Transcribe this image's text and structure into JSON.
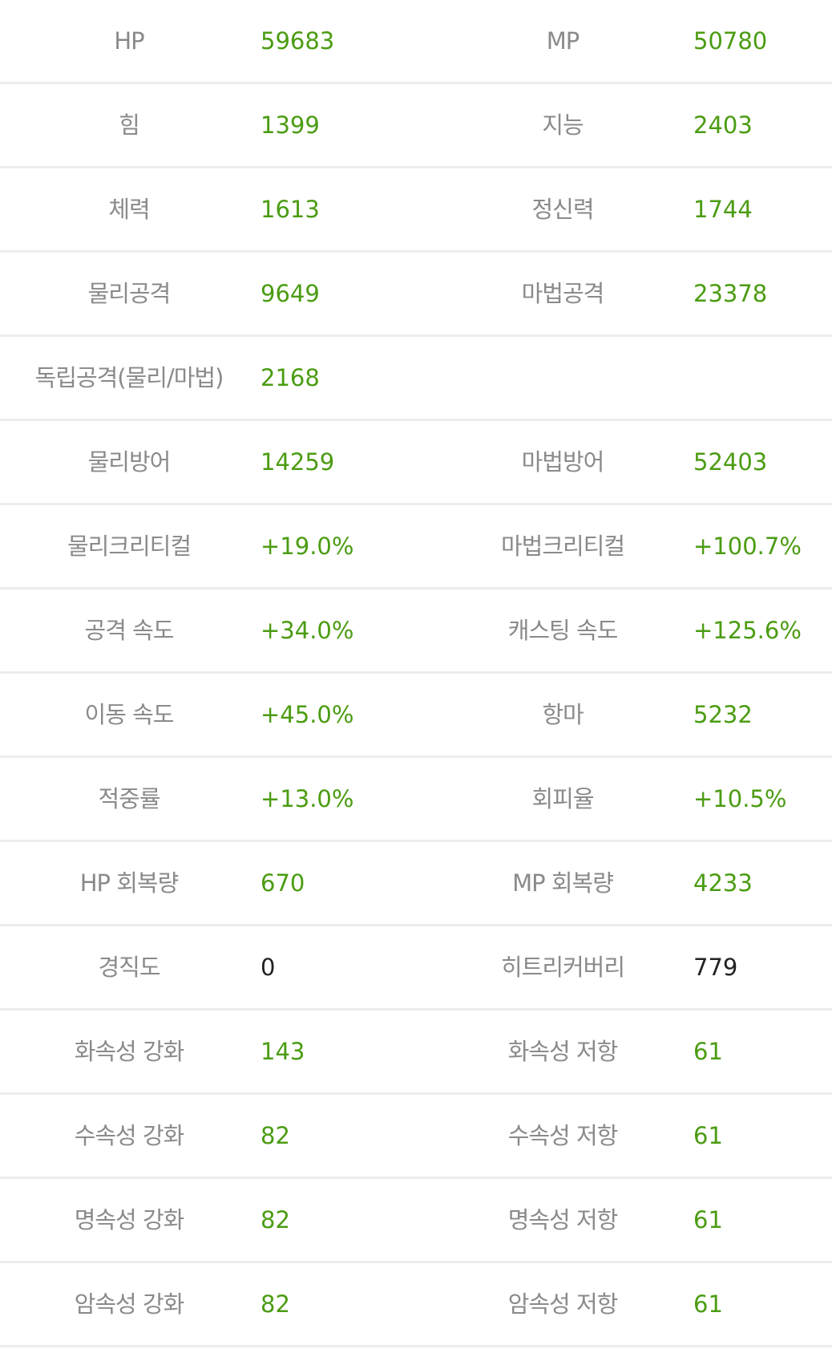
{
  "colors": {
    "label": "#8a8a8a",
    "value": "#4b9c12",
    "value_plain": "#222222",
    "divider": "#ededed"
  },
  "rows": [
    {
      "l_label": "HP",
      "l_value": "59683",
      "r_label": "MP",
      "r_value": "50780"
    },
    {
      "l_label": "힘",
      "l_value": "1399",
      "r_label": "지능",
      "r_value": "2403"
    },
    {
      "l_label": "체력",
      "l_value": "1613",
      "r_label": "정신력",
      "r_value": "1744"
    },
    {
      "l_label": "물리공격",
      "l_value": "9649",
      "r_label": "마법공격",
      "r_value": "23378"
    },
    {
      "l_label": "독립공격(물리/마법)",
      "l_value": "2168",
      "r_label": "",
      "r_value": ""
    },
    {
      "l_label": "물리방어",
      "l_value": "14259",
      "r_label": "마법방어",
      "r_value": "52403"
    },
    {
      "l_label": "물리크리티컬",
      "l_value": "+19.0%",
      "r_label": "마법크리티컬",
      "r_value": "+100.7%"
    },
    {
      "l_label": "공격 속도",
      "l_value": "+34.0%",
      "r_label": "캐스팅 속도",
      "r_value": "+125.6%"
    },
    {
      "l_label": "이동 속도",
      "l_value": "+45.0%",
      "r_label": "항마",
      "r_value": "5232"
    },
    {
      "l_label": "적중률",
      "l_value": "+13.0%",
      "r_label": "회피율",
      "r_value": "+10.5%"
    },
    {
      "l_label": "HP 회복량",
      "l_value": "670",
      "r_label": "MP 회복량",
      "r_value": "4233"
    },
    {
      "l_label": "경직도",
      "l_value": "0",
      "r_label": "히트리커버리",
      "r_value": "779",
      "plain": true
    },
    {
      "l_label": "화속성 강화",
      "l_value": "143",
      "r_label": "화속성 저항",
      "r_value": "61"
    },
    {
      "l_label": "수속성 강화",
      "l_value": "82",
      "r_label": "수속성 저항",
      "r_value": "61"
    },
    {
      "l_label": "명속성 강화",
      "l_value": "82",
      "r_label": "명속성 저항",
      "r_value": "61"
    },
    {
      "l_label": "암속성 강화",
      "l_value": "82",
      "r_label": "암속성 저항",
      "r_value": "61"
    }
  ]
}
